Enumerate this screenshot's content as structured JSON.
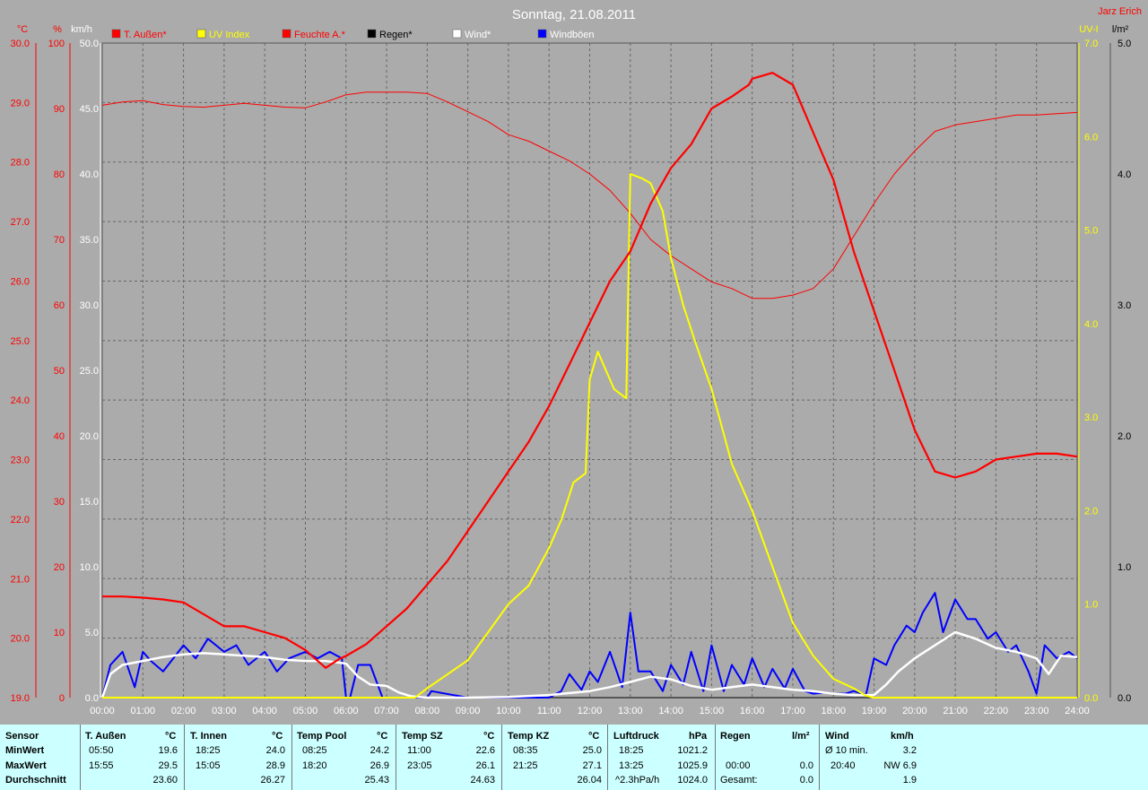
{
  "header": {
    "title": "Sonntag, 21.08.2011",
    "author": "Jarz Erich"
  },
  "axis_units": {
    "left1": "°C",
    "left2": "%",
    "left3": "km/h",
    "right1": "UV-I",
    "right2": "l/m²"
  },
  "colors": {
    "plot_bg": "#ababab",
    "temperature": "#ff0000",
    "humidity": "#ff0000",
    "uv": "#ffff00",
    "wind": "#ffffff",
    "gust": "#0000ff",
    "rain": "#000000",
    "stats_bg": "#ccffff"
  },
  "chart_data": {
    "type": "line",
    "legend": [
      {
        "name": "T. Außen*",
        "color": "#ff0000",
        "text_color": "#ff0000"
      },
      {
        "name": "UV Index",
        "color": "#ffff00",
        "text_color": "#ffff00"
      },
      {
        "name": "Feuchte A.*",
        "color": "#ff0000",
        "text_color": "#ff0000"
      },
      {
        "name": "Regen*",
        "color": "#000000",
        "text_color": "#000000"
      },
      {
        "name": "Wind*",
        "color": "#ffffff",
        "text_color": "#ffffff"
      },
      {
        "name": "Windböen",
        "color": "#0000ff",
        "text_color": "#ffffff"
      }
    ],
    "x_ticks": [
      "00:00",
      "01:00",
      "02:00",
      "03:00",
      "04:00",
      "05:00",
      "06:00",
      "07:00",
      "08:00",
      "09:00",
      "10:00",
      "11:00",
      "12:00",
      "13:00",
      "14:00",
      "15:00",
      "16:00",
      "17:00",
      "18:00",
      "19:00",
      "20:00",
      "21:00",
      "22:00",
      "23:00",
      "24:00"
    ],
    "y_ticks_temp": [
      "30.0",
      "29.0",
      "28.0",
      "27.0",
      "26.0",
      "25.0",
      "24.0",
      "23.0",
      "22.0",
      "21.0",
      "20.0",
      "19.0"
    ],
    "y_ticks_hum": [
      "100",
      "90",
      "80",
      "70",
      "60",
      "50",
      "40",
      "30",
      "20",
      "10",
      "0"
    ],
    "y_ticks_kmh": [
      "50.0",
      "45.0",
      "40.0",
      "35.0",
      "30.0",
      "25.0",
      "20.0",
      "15.0",
      "10.0",
      "5.0",
      "0.0"
    ],
    "y_ticks_uv": [
      "7.0",
      "6.0",
      "5.0",
      "4.0",
      "3.0",
      "2.0",
      "1.0",
      "0.0"
    ],
    "y_ticks_rain": [
      "5.0",
      "4.0",
      "3.0",
      "2.0",
      "1.0",
      "0.0"
    ],
    "x_range_hours": [
      0,
      24
    ],
    "y_range_temp": [
      19,
      30
    ],
    "y_range_hum": [
      0,
      100
    ],
    "y_range_kmh": [
      0,
      50
    ],
    "y_range_uv": [
      0,
      7
    ],
    "y_range_rain": [
      0,
      5
    ],
    "grid": true,
    "series": [
      {
        "name": "T. Außen*",
        "axis": "temp",
        "x": [
          0,
          0.5,
          1,
          1.5,
          2,
          2.5,
          3,
          3.5,
          4,
          4.5,
          5,
          5.5,
          5.83,
          6,
          6.5,
          7,
          7.5,
          8,
          8.5,
          9,
          9.5,
          10,
          10.5,
          11,
          11.5,
          12,
          12.5,
          13,
          13.5,
          14,
          14.5,
          15,
          15.5,
          15.92,
          16,
          16.5,
          17,
          17.5,
          18,
          18.5,
          19,
          19.5,
          20,
          20.5,
          21,
          21.5,
          22,
          22.5,
          23,
          23.5,
          24
        ],
        "y": [
          20.7,
          20.7,
          20.68,
          20.65,
          20.6,
          20.4,
          20.2,
          20.2,
          20.1,
          20.0,
          19.8,
          19.5,
          19.65,
          19.7,
          19.9,
          20.2,
          20.5,
          20.9,
          21.3,
          21.8,
          22.3,
          22.8,
          23.3,
          23.9,
          24.6,
          25.3,
          26.0,
          26.5,
          27.3,
          27.9,
          28.3,
          28.9,
          29.1,
          29.3,
          29.4,
          29.5,
          29.3,
          28.5,
          27.7,
          26.5,
          25.5,
          24.5,
          23.5,
          22.8,
          22.7,
          22.8,
          23.0,
          23.05,
          23.1,
          23.1,
          23.05
        ]
      },
      {
        "name": "UV Index",
        "axis": "uv",
        "x": [
          0,
          7.7,
          8,
          8.5,
          9,
          9.5,
          10,
          10.5,
          11,
          11.3,
          11.6,
          11.9,
          12,
          12.2,
          12.4,
          12.6,
          12.9,
          13,
          13.3,
          13.5,
          13.8,
          14,
          14.3,
          14.6,
          15,
          15.5,
          16,
          16.5,
          17,
          17.5,
          18,
          18.5,
          18.8,
          19,
          24
        ],
        "y": [
          0,
          0,
          0.1,
          0.25,
          0.4,
          0.7,
          1.0,
          1.2,
          1.6,
          1.9,
          2.3,
          2.4,
          3.4,
          3.7,
          3.5,
          3.3,
          3.2,
          5.6,
          5.55,
          5.5,
          5.2,
          4.7,
          4.2,
          3.8,
          3.3,
          2.5,
          2.0,
          1.4,
          0.8,
          0.45,
          0.2,
          0.1,
          0.02,
          0,
          0
        ]
      },
      {
        "name": "Feuchte A.*",
        "axis": "hum",
        "x": [
          0,
          0.5,
          1,
          1.5,
          2,
          2.5,
          3,
          3.5,
          4,
          4.5,
          5,
          5.5,
          6,
          6.5,
          7,
          7.5,
          8,
          8.5,
          9,
          9.5,
          10,
          10.5,
          11,
          11.5,
          12,
          12.5,
          13,
          13.5,
          14,
          14.5,
          15,
          15.5,
          16,
          16.5,
          17,
          17.5,
          18,
          18.5,
          19,
          19.5,
          20,
          20.5,
          21,
          21.5,
          22,
          22.5,
          23,
          23.5,
          24
        ],
        "y": [
          90.5,
          91.0,
          91.2,
          90.6,
          90.3,
          90.2,
          90.5,
          90.8,
          90.5,
          90.2,
          90.1,
          91.0,
          92.1,
          92.5,
          92.5,
          92.5,
          92.3,
          91.0,
          89.5,
          88.0,
          86.0,
          85.0,
          83.5,
          82.0,
          80.0,
          77.5,
          74.0,
          70.0,
          67.5,
          65.5,
          63.5,
          62.5,
          61.0,
          61.0,
          61.5,
          62.5,
          65.5,
          70.5,
          75.5,
          80.0,
          83.5,
          86.5,
          87.5,
          88.0,
          88.5,
          89.0,
          89.0,
          89.2,
          89.4
        ]
      },
      {
        "name": "Wind*",
        "axis": "kmh",
        "x": [
          0,
          0.2,
          0.5,
          1,
          1.5,
          2,
          2.5,
          3,
          3.5,
          4,
          4.5,
          5,
          5.5,
          6,
          6.3,
          6.6,
          7,
          7.3,
          7.6,
          8,
          9,
          10,
          11,
          12,
          12.5,
          13,
          13.5,
          14,
          14.5,
          15,
          15.5,
          16,
          16.5,
          17,
          17.5,
          18,
          18.5,
          19,
          19.3,
          19.6,
          20,
          20.5,
          21,
          21.5,
          22,
          22.5,
          23,
          23.3,
          23.6,
          24
        ],
        "y": [
          0,
          1.8,
          2.5,
          2.8,
          3.1,
          3.3,
          3.4,
          3.3,
          3.2,
          3.1,
          2.9,
          2.8,
          2.8,
          2.6,
          1.6,
          1.0,
          0.9,
          0.4,
          0.1,
          0,
          0,
          0.05,
          0.2,
          0.5,
          0.8,
          1.2,
          1.6,
          1.4,
          0.9,
          0.6,
          0.8,
          1.0,
          0.8,
          0.6,
          0.5,
          0.3,
          0.2,
          0.2,
          1.0,
          2.0,
          3.0,
          4.0,
          5.0,
          4.5,
          3.8,
          3.5,
          3.0,
          1.8,
          3.2,
          3.1
        ]
      },
      {
        "name": "Windböen",
        "axis": "kmh",
        "x": [
          0,
          0.2,
          0.5,
          0.8,
          1,
          1.2,
          1.5,
          2,
          2.3,
          2.6,
          3,
          3.3,
          3.6,
          4,
          4.3,
          4.6,
          5,
          5.3,
          5.6,
          5.9,
          6,
          6.1,
          6.3,
          6.6,
          6.9,
          7,
          7.4,
          8,
          8.1,
          9,
          10,
          11,
          11.3,
          11.5,
          11.8,
          12,
          12.2,
          12.5,
          12.8,
          13,
          13.2,
          13.5,
          13.8,
          14,
          14.3,
          14.5,
          14.8,
          15,
          15.3,
          15.5,
          15.8,
          16,
          16.3,
          16.5,
          16.8,
          17,
          17.3,
          17.5,
          17.8,
          18,
          18.3,
          18.5,
          18.8,
          19,
          19.3,
          19.5,
          19.8,
          20,
          20.2,
          20.5,
          20.7,
          21,
          21.3,
          21.5,
          21.8,
          22,
          22.3,
          22.5,
          22.8,
          23,
          23.2,
          23.5,
          23.8,
          24
        ],
        "y": [
          0,
          2.5,
          3.5,
          0.8,
          3.5,
          2.8,
          2.0,
          4.0,
          3.0,
          4.5,
          3.5,
          4.0,
          2.5,
          3.5,
          2.0,
          3.0,
          3.5,
          3.0,
          3.5,
          3.0,
          0,
          0,
          2.5,
          2.5,
          0,
          0,
          0,
          0,
          0.5,
          0,
          0,
          0,
          0.5,
          1.8,
          0.6,
          2.0,
          1.2,
          3.5,
          0.8,
          6.5,
          2.0,
          2.0,
          0.5,
          2.5,
          1.0,
          3.5,
          0.5,
          4.0,
          0.5,
          2.5,
          1.0,
          3.0,
          0.8,
          2.2,
          0.7,
          2.2,
          0.5,
          0.3,
          0.4,
          0.3,
          0.3,
          0.5,
          0.2,
          3.0,
          2.5,
          4.0,
          5.5,
          5.0,
          6.5,
          8.0,
          5.0,
          7.5,
          6.0,
          6.0,
          4.5,
          5.0,
          3.5,
          4.0,
          2.0,
          0.3,
          4.0,
          3.0,
          3.5,
          3.0
        ]
      },
      {
        "name": "Regen*",
        "axis": "rain",
        "x": [
          0,
          24
        ],
        "y": [
          0,
          0
        ]
      }
    ]
  },
  "stats": {
    "col_sensor": {
      "header": "Sensor",
      "min": "MinWert",
      "max": "MaxWert",
      "avg": "Durchschnitt"
    },
    "t_aussen": {
      "header": "T. Außen",
      "unit": "°C",
      "min_time": "05:50",
      "min_val": "19.6",
      "max_time": "15:55",
      "max_val": "29.5",
      "avg": "23.60"
    },
    "t_innen": {
      "header": "T. Innen",
      "unit": "°C",
      "min_time": "18:25",
      "min_val": "24.0",
      "max_time": "15:05",
      "max_val": "28.9",
      "avg": "26.27"
    },
    "temp_pool": {
      "header": "Temp Pool",
      "unit": "°C",
      "min_time": "08:25",
      "min_val": "24.2",
      "max_time": "18:20",
      "max_val": "26.9",
      "avg": "25.43"
    },
    "temp_sz": {
      "header": "Temp SZ",
      "unit": "°C",
      "min_time": "11:00",
      "min_val": "22.6",
      "max_time": "23:05",
      "max_val": "26.1",
      "avg": "24.63"
    },
    "temp_kz": {
      "header": "Temp KZ",
      "unit": "°C",
      "min_time": "08:35",
      "min_val": "25.0",
      "max_time": "21:25",
      "max_val": "27.1",
      "avg": "26.04"
    },
    "luftdruck": {
      "header": "Luftdruck",
      "unit": "hPa",
      "min_time": "18:25",
      "min_val": "1021.2",
      "max_time": "13:25",
      "max_val": "1025.9",
      "avg_label": "^2.3hPa/h",
      "avg": "1024.0"
    },
    "regen": {
      "header": "Regen",
      "unit": "l/m²",
      "max_time": "00:00",
      "max_val": "0.0",
      "avg_label": "Gesamt:",
      "avg": "0.0"
    },
    "wind": {
      "header": "Wind",
      "unit": "km/h",
      "min_time": "Ø 10 min.",
      "min_val": "3.2",
      "max_time": "20:40",
      "max_val": "NW 6.9",
      "avg": "1.9"
    }
  }
}
